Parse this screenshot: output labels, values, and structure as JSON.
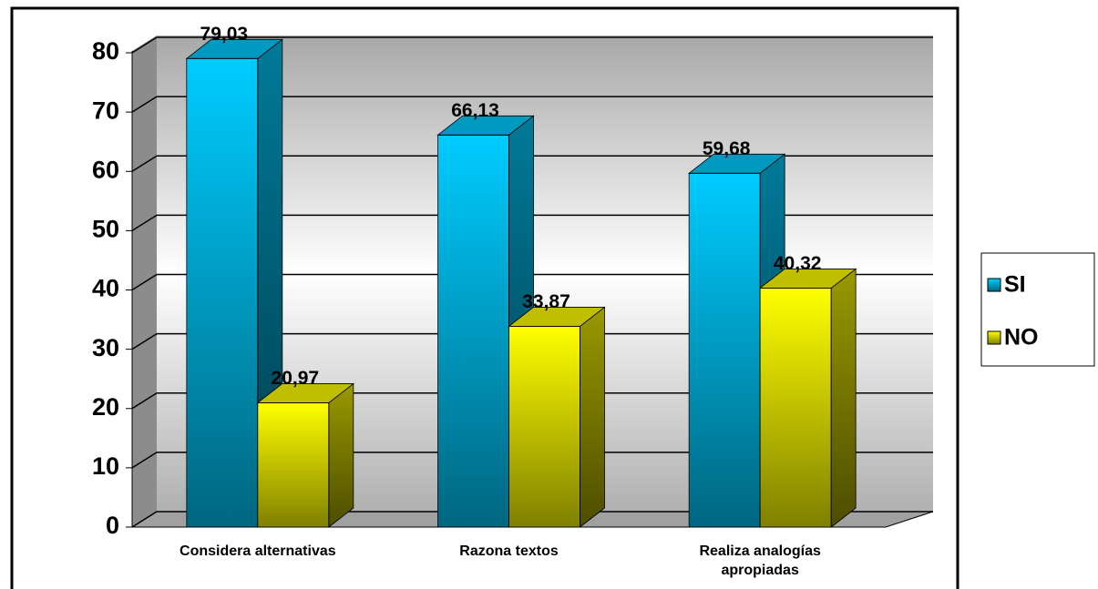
{
  "chart_data": {
    "type": "bar3d",
    "categories": [
      "Considera alternativas",
      "Razona textos",
      "Realiza analogías apropiadas"
    ],
    "series": [
      {
        "name": "SI",
        "color": "#00ccff",
        "values": [
          79.03,
          66.13,
          59.68
        ],
        "value_labels": [
          "79,03",
          "66,13",
          "59,68"
        ]
      },
      {
        "name": "NO",
        "color": "#ffff00",
        "values": [
          20.97,
          33.87,
          40.32
        ],
        "value_labels": [
          "20,97",
          "33,87",
          "40,32"
        ]
      }
    ],
    "ylim": [
      0,
      80
    ],
    "yticks": [
      0,
      10,
      20,
      30,
      40,
      50,
      60,
      70,
      80
    ],
    "grid": true,
    "legend": "right"
  }
}
